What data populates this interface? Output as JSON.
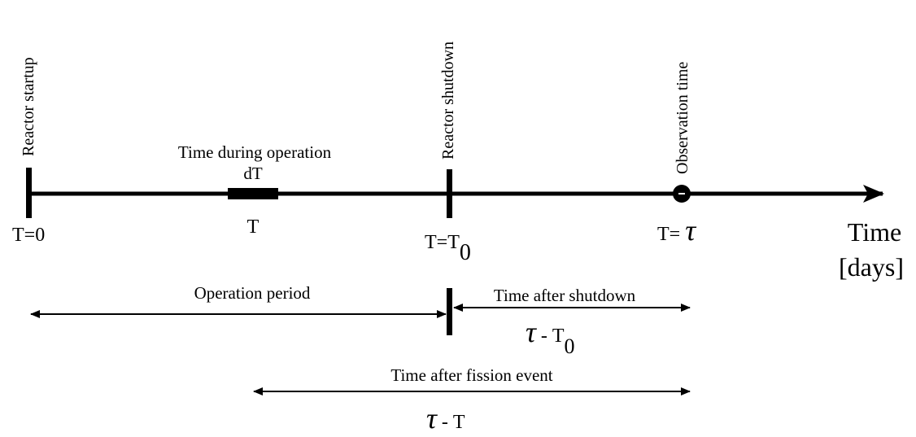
{
  "events": [
    {
      "label": "Reactor startup",
      "time": "T=0"
    },
    {
      "label": "Reactor shutdown",
      "time": {
        "main": "T=T",
        "sub": "0"
      }
    },
    {
      "label": "Observation time",
      "time": {
        "main": "T=",
        "symbol": "τ"
      }
    }
  ],
  "operation": {
    "label": "Time during operation",
    "width": "dT",
    "time": "T"
  },
  "axis": {
    "label": "Time",
    "unit": "[days]"
  },
  "periods": [
    {
      "label": "Operation period"
    },
    {
      "label": "Time after shutdown",
      "expression": {
        "symbol": "τ",
        "main": "- T",
        "sub": "0"
      }
    },
    {
      "label": "Time after fission event",
      "expression": {
        "symbol": "τ",
        "main": "- T"
      }
    }
  ]
}
